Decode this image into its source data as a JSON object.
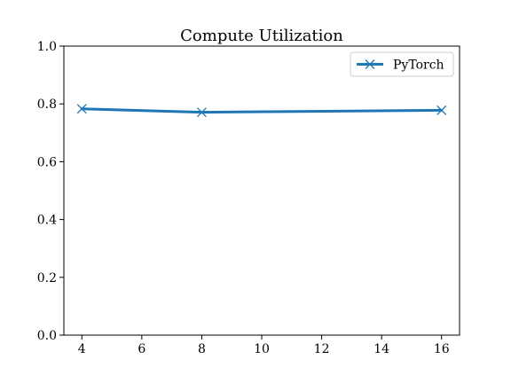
{
  "chart_data": {
    "type": "line",
    "title": "Compute Utilization",
    "xlabel": "",
    "ylabel": "",
    "xlim": [
      3.4,
      16.6
    ],
    "ylim": [
      0.0,
      1.0
    ],
    "xticks": [
      4,
      6,
      8,
      10,
      12,
      14,
      16
    ],
    "yticks": [
      0.0,
      0.2,
      0.4,
      0.6,
      0.8,
      1.0
    ],
    "xtick_labels": [
      "4",
      "6",
      "8",
      "10",
      "12",
      "14",
      "16"
    ],
    "ytick_labels": [
      "0.0",
      "0.2",
      "0.4",
      "0.6",
      "0.8",
      "1.0"
    ],
    "grid": false,
    "legend_position": "top-right",
    "series": [
      {
        "name": "PyTorch",
        "color": "#1f77b4",
        "marker": "x",
        "x": [
          4,
          8,
          16
        ],
        "y": [
          0.783,
          0.771,
          0.778
        ]
      }
    ]
  }
}
